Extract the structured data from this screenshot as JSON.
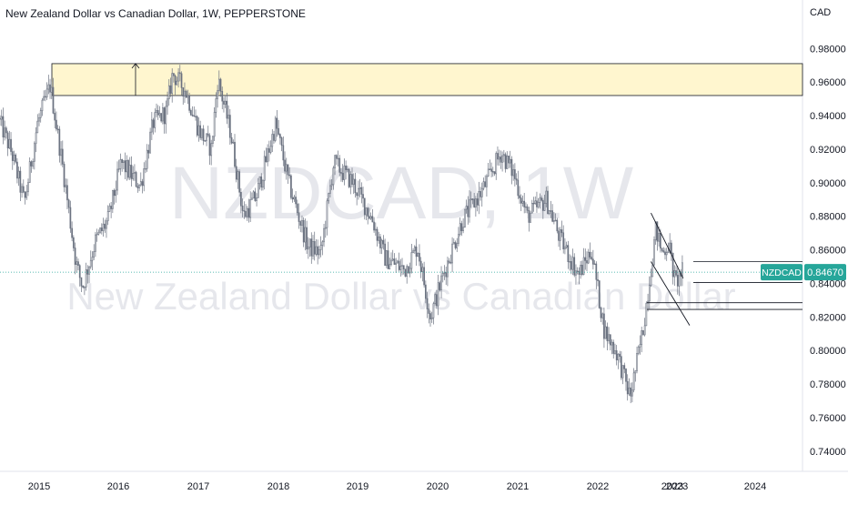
{
  "header": {
    "title": "New Zealand Dollar vs Canadian Dollar, 1W, PEPPERSTONE",
    "currency": "CAD"
  },
  "watermark": {
    "symbol": "NZDCAD, 1W",
    "description": "New Zealand Dollar vs Canadian Dollar"
  },
  "colors": {
    "up": "#26a69a",
    "down": "#ef5350",
    "candle": "#6b7280",
    "zone_fill": "#fff6cf",
    "badge": "#26a69a",
    "line": "#787b86",
    "axis_text": "#131722"
  },
  "chart_data": {
    "type": "candlestick",
    "title": "New Zealand Dollar vs Canadian Dollar, 1W, PEPPERSTONE",
    "symbol": "NZDCAD",
    "timeframe": "1W",
    "y_axis_unit": "CAD",
    "y_ticks": [
      "0.98000",
      "0.96000",
      "0.94000",
      "0.92000",
      "0.90000",
      "0.88000",
      "0.86000",
      "0.84000",
      "0.82000",
      "0.80000",
      "0.78000",
      "0.76000",
      "0.74000"
    ],
    "x_ticks": [
      "2015",
      "2016",
      "2017",
      "2018",
      "2019",
      "2020",
      "2021",
      "2022",
      "2023",
      "2023",
      "2024"
    ],
    "ylim": [
      0.728,
      0.997
    ],
    "last_price": "0.84670",
    "last_price_label": "NZDCAD",
    "price_path": [
      [
        "2014-07",
        0.948
      ],
      [
        "2014-10",
        0.918
      ],
      [
        "2014-12",
        0.888
      ],
      [
        "2015-02",
        0.935
      ],
      [
        "2015-04",
        0.958
      ],
      [
        "2015-06",
        0.908
      ],
      [
        "2015-08",
        0.852
      ],
      [
        "2015-09",
        0.838
      ],
      [
        "2015-11",
        0.865
      ],
      [
        "2016-01",
        0.878
      ],
      [
        "2016-03",
        0.912
      ],
      [
        "2016-06",
        0.898
      ],
      [
        "2016-08",
        0.936
      ],
      [
        "2016-10",
        0.942
      ],
      [
        "2016-11",
        0.965
      ],
      [
        "2017-01",
        0.955
      ],
      [
        "2017-03",
        0.932
      ],
      [
        "2017-05",
        0.92
      ],
      [
        "2017-06",
        0.962
      ],
      [
        "2017-08",
        0.93
      ],
      [
        "2017-10",
        0.88
      ],
      [
        "2017-12",
        0.892
      ],
      [
        "2018-03",
        0.935
      ],
      [
        "2018-05",
        0.9
      ],
      [
        "2018-08",
        0.862
      ],
      [
        "2018-10",
        0.858
      ],
      [
        "2018-12",
        0.912
      ],
      [
        "2019-03",
        0.9
      ],
      [
        "2019-06",
        0.878
      ],
      [
        "2019-08",
        0.855
      ],
      [
        "2019-11",
        0.848
      ],
      [
        "2020-01",
        0.862
      ],
      [
        "2020-03",
        0.82
      ],
      [
        "2020-05",
        0.845
      ],
      [
        "2020-08",
        0.878
      ],
      [
        "2020-11",
        0.895
      ],
      [
        "2021-02",
        0.918
      ],
      [
        "2021-04",
        0.905
      ],
      [
        "2021-06",
        0.88
      ],
      [
        "2021-09",
        0.89
      ],
      [
        "2021-11",
        0.868
      ],
      [
        "2022-02",
        0.845
      ],
      [
        "2022-04",
        0.86
      ],
      [
        "2022-06",
        0.812
      ],
      [
        "2022-08",
        0.798
      ],
      [
        "2022-10",
        0.772
      ],
      [
        "2022-12",
        0.812
      ],
      [
        "2023-02",
        0.872
      ],
      [
        "2023-03",
        0.858
      ],
      [
        "2023-04",
        0.864
      ],
      [
        "2023-05",
        0.84
      ],
      [
        "2023-06",
        0.8467
      ]
    ],
    "annotations": {
      "resistance_zone": [
        0.952,
        0.971
      ],
      "support_line_1": 0.8285,
      "support_line_2": 0.8245,
      "horizontal_line_3": 0.853,
      "horizontal_line_4": 0.8405,
      "channel_upper": [
        [
          "2023-01",
          0.882
        ],
        [
          "2023-06",
          0.843
        ]
      ],
      "channel_lower": [
        [
          "2023-01",
          0.853
        ],
        [
          "2023-07",
          0.815
        ]
      ],
      "arrow": {
        "date": "2016-05",
        "from": 0.952,
        "to": 0.971
      }
    }
  }
}
